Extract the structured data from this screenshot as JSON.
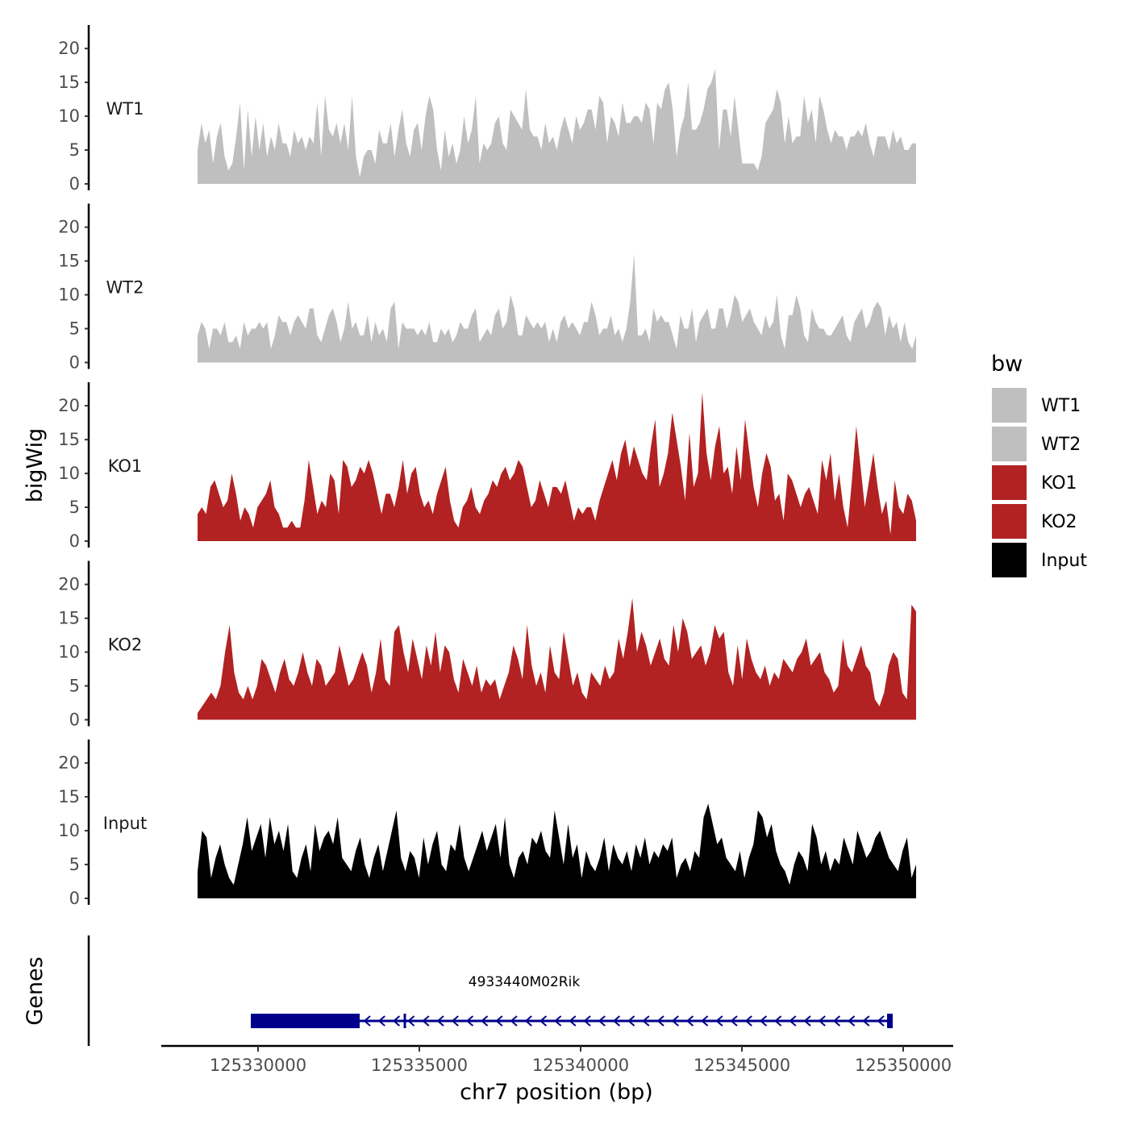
{
  "chart_data": {
    "type": "area",
    "description_free": true,
    "chromosome": "chr7",
    "xlabel": "chr7 position (bp)",
    "ylabel": "bigWig",
    "genes_label": "Genes",
    "xlim": [
      125327000,
      125351500
    ],
    "region": [
      125329700,
      125351700
    ],
    "x_ticks": [
      125330000,
      125335000,
      125340000,
      125345000,
      125350000
    ],
    "x_tick_labels": [
      "125330000",
      "125335000",
      "125340000",
      "125345000",
      "125350000"
    ],
    "ylim": [
      0,
      23
    ],
    "y_ticks": [
      0,
      5,
      10,
      15,
      20
    ],
    "y_tick_labels": [
      "0",
      "5",
      "10",
      "15",
      "20"
    ],
    "legend": {
      "title": "bw",
      "entries": [
        {
          "label": "WT1",
          "color": "#bfbfbf"
        },
        {
          "label": "WT2",
          "color": "#bfbfbf"
        },
        {
          "label": "KO1",
          "color": "#b22222"
        },
        {
          "label": "KO2",
          "color": "#b22222"
        },
        {
          "label": "Input",
          "color": "#000000"
        }
      ]
    },
    "series": [
      {
        "name": "WT1",
        "color": "#bfbfbf",
        "values": [
          5,
          9,
          6,
          8,
          3,
          7,
          9,
          4,
          2,
          3,
          7,
          12,
          2,
          11,
          4,
          10,
          5,
          9,
          4,
          7,
          5,
          9,
          6,
          6,
          4,
          8,
          6,
          7,
          5,
          7,
          6,
          12,
          4,
          13,
          8,
          7,
          9,
          6,
          9,
          5,
          13,
          4,
          1,
          4,
          5,
          5,
          3,
          8,
          6,
          6,
          9,
          4,
          8,
          11,
          6,
          4,
          8,
          9,
          5,
          10,
          13,
          11,
          5,
          2,
          8,
          4,
          6,
          3,
          5,
          10,
          6,
          8,
          13,
          3,
          6,
          5,
          6,
          9,
          10,
          6,
          5,
          11,
          10,
          9,
          8,
          14,
          8,
          7,
          7,
          5,
          9,
          6,
          7,
          5,
          8,
          10,
          8,
          6,
          10,
          8,
          9,
          11,
          11,
          8,
          13,
          12,
          6,
          10,
          9,
          7,
          12,
          9,
          9,
          10,
          10,
          9,
          12,
          11,
          6,
          12,
          11,
          14,
          15,
          11,
          4,
          8,
          10,
          15,
          8,
          8,
          9,
          11,
          14,
          15,
          17,
          5,
          11,
          11,
          7,
          13,
          8,
          3,
          3,
          3,
          3,
          2,
          4,
          9,
          10,
          11,
          14,
          12,
          6,
          10,
          6,
          7,
          7,
          13,
          9,
          11,
          6,
          13,
          11,
          8,
          6,
          8,
          7,
          7,
          5,
          7,
          7,
          8,
          7,
          9,
          6,
          4,
          7,
          7,
          7,
          5,
          8,
          6,
          7,
          5,
          5,
          6,
          6
        ]
      },
      {
        "name": "WT2",
        "color": "#bfbfbf",
        "values": [
          4,
          6,
          5,
          2,
          5,
          5,
          4,
          6,
          3,
          3,
          4,
          2,
          6,
          4,
          5,
          5,
          6,
          5,
          6,
          2,
          4,
          7,
          6,
          6,
          4,
          6,
          7,
          6,
          5,
          8,
          8,
          4,
          3,
          5,
          7,
          8,
          6,
          3,
          5,
          9,
          5,
          6,
          4,
          4,
          7,
          3,
          6,
          4,
          5,
          3,
          8,
          9,
          2,
          6,
          5,
          5,
          5,
          4,
          5,
          4,
          6,
          3,
          3,
          5,
          4,
          5,
          3,
          4,
          6,
          5,
          5,
          7,
          8,
          3,
          4,
          5,
          4,
          7,
          8,
          5,
          6,
          10,
          8,
          4,
          4,
          7,
          6,
          5,
          6,
          5,
          6,
          3,
          5,
          3,
          6,
          7,
          5,
          6,
          5,
          4,
          6,
          6,
          9,
          7,
          4,
          5,
          5,
          7,
          4,
          5,
          3,
          5,
          9,
          16,
          4,
          4,
          5,
          3,
          8,
          6,
          7,
          6,
          6,
          4,
          2,
          7,
          5,
          5,
          8,
          3,
          6,
          7,
          8,
          5,
          5,
          8,
          8,
          5,
          7,
          10,
          9,
          6,
          7,
          8,
          6,
          5,
          4,
          7,
          5,
          6,
          10,
          4,
          2,
          7,
          7,
          10,
          8,
          4,
          3,
          8,
          6,
          5,
          5,
          4,
          4,
          5,
          6,
          7,
          4,
          3,
          6,
          7,
          8,
          5,
          6,
          8,
          9,
          8,
          4,
          7,
          5,
          6,
          3,
          6,
          3,
          2,
          4
        ]
      },
      {
        "name": "KO1",
        "color": "#b22222",
        "values": [
          4,
          5,
          4,
          8,
          9,
          7,
          5,
          6,
          10,
          7,
          3,
          5,
          4,
          2,
          5,
          6,
          7,
          9,
          5,
          4,
          2,
          2,
          3,
          2,
          2,
          6,
          12,
          8,
          4,
          6,
          5,
          10,
          9,
          4,
          12,
          11,
          8,
          9,
          11,
          10,
          12,
          10,
          7,
          4,
          7,
          7,
          5,
          8,
          12,
          7,
          10,
          11,
          7,
          5,
          6,
          4,
          7,
          9,
          11,
          6,
          3,
          2,
          5,
          6,
          8,
          5,
          4,
          6,
          7,
          9,
          8,
          10,
          11,
          9,
          10,
          12,
          11,
          8,
          5,
          6,
          9,
          7,
          5,
          8,
          8,
          7,
          9,
          6,
          3,
          5,
          4,
          5,
          5,
          3,
          6,
          8,
          10,
          12,
          9,
          13,
          15,
          11,
          14,
          12,
          10,
          9,
          14,
          18,
          8,
          10,
          13,
          19,
          15,
          11,
          6,
          16,
          8,
          10,
          22,
          13,
          9,
          14,
          17,
          10,
          11,
          7,
          14,
          9,
          18,
          13,
          8,
          5,
          10,
          13,
          11,
          6,
          7,
          3,
          10,
          9,
          7,
          5,
          7,
          8,
          6,
          4,
          12,
          9,
          13,
          6,
          10,
          5,
          2,
          9,
          17,
          11,
          5,
          9,
          13,
          8,
          4,
          6,
          1,
          9,
          5,
          4,
          7,
          6,
          3
        ]
      },
      {
        "name": "KO2",
        "color": "#b22222",
        "values": [
          1,
          2,
          3,
          4,
          3,
          5,
          10,
          14,
          7,
          4,
          3,
          5,
          3,
          5,
          9,
          8,
          6,
          4,
          7,
          9,
          6,
          5,
          7,
          10,
          7,
          5,
          9,
          8,
          5,
          6,
          7,
          11,
          8,
          5,
          6,
          8,
          10,
          8,
          4,
          7,
          12,
          6,
          5,
          13,
          14,
          10,
          7,
          12,
          9,
          6,
          11,
          8,
          13,
          7,
          11,
          10,
          6,
          4,
          9,
          7,
          5,
          8,
          4,
          6,
          5,
          6,
          3,
          5,
          7,
          11,
          9,
          6,
          14,
          8,
          5,
          7,
          4,
          11,
          7,
          6,
          13,
          9,
          5,
          7,
          4,
          3,
          7,
          6,
          5,
          8,
          6,
          7,
          12,
          9,
          13,
          18,
          10,
          13,
          11,
          8,
          10,
          12,
          9,
          8,
          14,
          10,
          15,
          13,
          9,
          10,
          11,
          8,
          10,
          14,
          12,
          13,
          7,
          5,
          11,
          6,
          12,
          9,
          7,
          6,
          8,
          5,
          7,
          6,
          9,
          8,
          7,
          9,
          10,
          12,
          8,
          9,
          10,
          7,
          6,
          4,
          5,
          12,
          8,
          7,
          9,
          11,
          8,
          7,
          3,
          2,
          4,
          8,
          10,
          9,
          4,
          3,
          17,
          16
        ]
      },
      {
        "name": "Input",
        "color": "#000000",
        "values": [
          4,
          10,
          9,
          3,
          6,
          8,
          5,
          3,
          2,
          5,
          8,
          12,
          7,
          9,
          11,
          6,
          12,
          8,
          10,
          7,
          11,
          4,
          3,
          6,
          8,
          4,
          11,
          7,
          9,
          10,
          8,
          12,
          6,
          5,
          4,
          7,
          9,
          5,
          3,
          6,
          8,
          4,
          7,
          10,
          13,
          6,
          4,
          7,
          6,
          3,
          9,
          5,
          8,
          10,
          5,
          4,
          8,
          7,
          11,
          6,
          4,
          6,
          8,
          10,
          7,
          9,
          11,
          6,
          12,
          5,
          3,
          6,
          7,
          5,
          9,
          8,
          10,
          7,
          6,
          13,
          9,
          5,
          11,
          6,
          8,
          3,
          7,
          5,
          4,
          6,
          9,
          4,
          8,
          6,
          5,
          7,
          4,
          8,
          6,
          9,
          5,
          7,
          6,
          8,
          7,
          9,
          3,
          5,
          6,
          4,
          7,
          6,
          12,
          14,
          11,
          8,
          9,
          6,
          5,
          4,
          7,
          3,
          6,
          8,
          13,
          12,
          9,
          11,
          7,
          5,
          4,
          2,
          5,
          7,
          6,
          4,
          11,
          9,
          5,
          7,
          4,
          6,
          5,
          9,
          7,
          5,
          10,
          8,
          6,
          7,
          9,
          10,
          8,
          6,
          5,
          4,
          7,
          9,
          3,
          5
        ]
      }
    ],
    "gene": {
      "name": "4933440M02Rik",
      "strand": "-",
      "start": 125329700,
      "end": 125349700,
      "thick_end": 125333150,
      "end_block_start": 125349500
    }
  }
}
